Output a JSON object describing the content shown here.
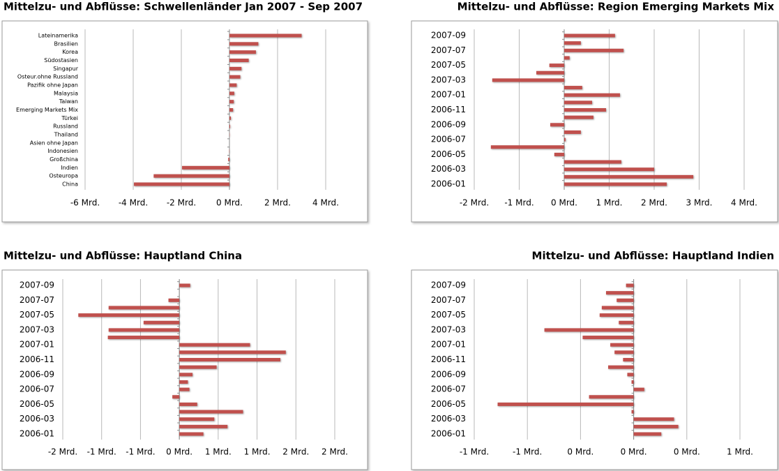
{
  "chart_data": [
    {
      "type": "barh",
      "title": "Mittelzu- und Abflüsse: Schwellenländer Jan 2007 - Sep 2007",
      "color": "#c0504d",
      "grid": true,
      "categories": [
        "Lateinamerika",
        "Brasilien",
        "Korea",
        "Südostasien",
        "Singapur",
        "Osteur.ohne Russland",
        "Pazifik ohne Japan",
        "Malaysia",
        "Taiwan",
        "Emerging Markets Mix",
        "Türkei",
        "Russland",
        "Thailand",
        "Asien ohne Japan",
        "Indonesien",
        "Großchina",
        "Indien",
        "Osteuropa",
        "China"
      ],
      "values": [
        3.0,
        1.2,
        1.1,
        0.8,
        0.5,
        0.45,
        0.3,
        0.2,
        0.18,
        0.15,
        0.06,
        0.03,
        0.01,
        0.0,
        -0.01,
        -0.05,
        -1.97,
        -3.15,
        -3.97
      ],
      "xlim": [
        -6,
        4
      ],
      "xticks": [
        {
          "value": -6,
          "label": "-6 Mrd."
        },
        {
          "value": -4,
          "label": "-4 Mrd."
        },
        {
          "value": -2,
          "label": "-2 Mrd."
        },
        {
          "value": 0,
          "label": "0 Mrd."
        },
        {
          "value": 2,
          "label": "2 Mrd."
        },
        {
          "value": 4,
          "label": "4 Mrd."
        }
      ]
    },
    {
      "type": "barh",
      "title": "Mittelzu- und Abflüsse: Region Emerging Markets Mix",
      "color": "#c0504d",
      "grid": true,
      "categories": [
        "2007-09",
        null,
        "2007-07",
        null,
        "2007-05",
        null,
        "2007-03",
        null,
        "2007-01",
        null,
        "2006-11",
        null,
        "2006-09",
        null,
        "2006-07",
        null,
        "2006-05",
        null,
        "2006-03",
        null,
        "2006-01"
      ],
      "values": [
        1.13,
        0.37,
        1.32,
        0.12,
        -0.33,
        -0.62,
        -1.6,
        0.4,
        1.24,
        0.62,
        0.93,
        0.65,
        -0.31,
        0.37,
        0.03,
        -1.63,
        -0.22,
        1.27,
        2.0,
        2.87,
        2.28
      ],
      "xlim": [
        -2,
        4
      ],
      "xticks": [
        {
          "value": -2,
          "label": "-2 Mrd."
        },
        {
          "value": -1,
          "label": "-1 Mrd."
        },
        {
          "value": 0,
          "label": "0 Mrd."
        },
        {
          "value": 1,
          "label": "1 Mrd."
        },
        {
          "value": 2,
          "label": "2 Mrd."
        },
        {
          "value": 3,
          "label": "3 Mrd."
        },
        {
          "value": 4,
          "label": "4 Mrd."
        }
      ]
    },
    {
      "type": "barh",
      "title": "Mittelzu- und Abflüsse: Hauptland China",
      "color": "#c0504d",
      "grid": true,
      "categories": [
        "2007-09",
        null,
        "2007-07",
        null,
        "2007-05",
        null,
        "2007-03",
        null,
        "2007-01",
        null,
        "2006-11",
        null,
        "2006-09",
        null,
        "2006-07",
        null,
        "2006-05",
        null,
        "2006-03",
        null,
        "2006-01"
      ],
      "values": [
        0.14,
        0.0,
        -0.14,
        -0.91,
        -1.3,
        -0.46,
        -0.91,
        -0.92,
        0.91,
        1.37,
        1.3,
        0.48,
        0.17,
        0.11,
        0.13,
        -0.09,
        0.23,
        0.82,
        0.45,
        0.62,
        0.31
      ],
      "xlim": [
        -1.5,
        2
      ],
      "xticks": [
        {
          "value": -1.5,
          "label": "-2 Mrd."
        },
        {
          "value": -1,
          "label": "-1 Mrd."
        },
        {
          "value": -0.5,
          "label": "-1 Mrd."
        },
        {
          "value": 0,
          "label": "0 Mrd."
        },
        {
          "value": 0.5,
          "label": "1 Mrd."
        },
        {
          "value": 1,
          "label": "1 Mrd."
        },
        {
          "value": 1.5,
          "label": "2 Mrd."
        },
        {
          "value": 2,
          "label": "2 Mrd."
        }
      ]
    },
    {
      "type": "barh",
      "title": "Mittelzu- und Abflüsse: Hauptland Indien",
      "color": "#c0504d",
      "grid": true,
      "categories": [
        "2007-09",
        null,
        "2007-07",
        null,
        "2007-05",
        null,
        "2007-03",
        null,
        "2007-01",
        null,
        "2006-11",
        null,
        "2006-09",
        null,
        "2006-07",
        null,
        "2006-05",
        null,
        "2006-03",
        null,
        "2006-01"
      ],
      "values": [
        -0.036,
        -0.13,
        -0.08,
        -0.15,
        -0.16,
        -0.07,
        -0.42,
        -0.24,
        -0.11,
        -0.09,
        -0.05,
        -0.12,
        -0.03,
        -0.01,
        0.05,
        -0.21,
        -0.64,
        -0.01,
        0.19,
        0.21,
        0.13
      ],
      "xlim": [
        -0.75,
        0.5
      ],
      "xticks": [
        {
          "value": -0.75,
          "label": "-1 Mrd."
        },
        {
          "value": -0.5,
          "label": "-1 Mrd."
        },
        {
          "value": -0.25,
          "label": "0 Mrd."
        },
        {
          "value": 0,
          "label": "0 Mrd."
        },
        {
          "value": 0.25,
          "label": "0 Mrd."
        },
        {
          "value": 0.5,
          "label": "1 Mrd."
        }
      ]
    }
  ]
}
